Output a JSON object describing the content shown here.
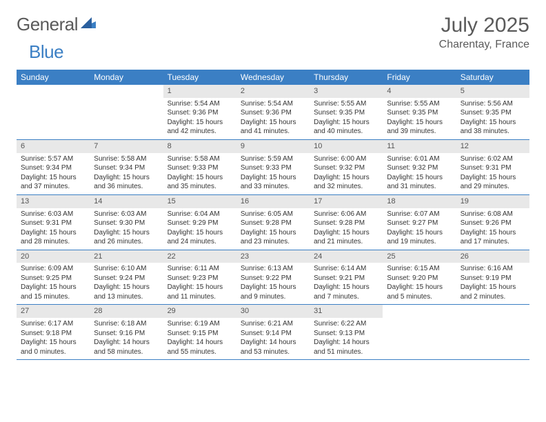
{
  "logo": {
    "text1": "General",
    "text2": "Blue"
  },
  "title": "July 2025",
  "location": "Charentay, France",
  "colors": {
    "header_bg": "#3b7fc4",
    "header_text": "#ffffff",
    "daynum_bg": "#e8e8e8",
    "body_text": "#333333",
    "title_text": "#5a5a5a",
    "divider": "#3b7fc4"
  },
  "daysOfWeek": [
    "Sunday",
    "Monday",
    "Tuesday",
    "Wednesday",
    "Thursday",
    "Friday",
    "Saturday"
  ],
  "weeks": [
    [
      {
        "n": "",
        "sr": "",
        "ss": "",
        "dl": ""
      },
      {
        "n": "",
        "sr": "",
        "ss": "",
        "dl": ""
      },
      {
        "n": "1",
        "sr": "Sunrise: 5:54 AM",
        "ss": "Sunset: 9:36 PM",
        "dl": "Daylight: 15 hours and 42 minutes."
      },
      {
        "n": "2",
        "sr": "Sunrise: 5:54 AM",
        "ss": "Sunset: 9:36 PM",
        "dl": "Daylight: 15 hours and 41 minutes."
      },
      {
        "n": "3",
        "sr": "Sunrise: 5:55 AM",
        "ss": "Sunset: 9:35 PM",
        "dl": "Daylight: 15 hours and 40 minutes."
      },
      {
        "n": "4",
        "sr": "Sunrise: 5:55 AM",
        "ss": "Sunset: 9:35 PM",
        "dl": "Daylight: 15 hours and 39 minutes."
      },
      {
        "n": "5",
        "sr": "Sunrise: 5:56 AM",
        "ss": "Sunset: 9:35 PM",
        "dl": "Daylight: 15 hours and 38 minutes."
      }
    ],
    [
      {
        "n": "6",
        "sr": "Sunrise: 5:57 AM",
        "ss": "Sunset: 9:34 PM",
        "dl": "Daylight: 15 hours and 37 minutes."
      },
      {
        "n": "7",
        "sr": "Sunrise: 5:58 AM",
        "ss": "Sunset: 9:34 PM",
        "dl": "Daylight: 15 hours and 36 minutes."
      },
      {
        "n": "8",
        "sr": "Sunrise: 5:58 AM",
        "ss": "Sunset: 9:33 PM",
        "dl": "Daylight: 15 hours and 35 minutes."
      },
      {
        "n": "9",
        "sr": "Sunrise: 5:59 AM",
        "ss": "Sunset: 9:33 PM",
        "dl": "Daylight: 15 hours and 33 minutes."
      },
      {
        "n": "10",
        "sr": "Sunrise: 6:00 AM",
        "ss": "Sunset: 9:32 PM",
        "dl": "Daylight: 15 hours and 32 minutes."
      },
      {
        "n": "11",
        "sr": "Sunrise: 6:01 AM",
        "ss": "Sunset: 9:32 PM",
        "dl": "Daylight: 15 hours and 31 minutes."
      },
      {
        "n": "12",
        "sr": "Sunrise: 6:02 AM",
        "ss": "Sunset: 9:31 PM",
        "dl": "Daylight: 15 hours and 29 minutes."
      }
    ],
    [
      {
        "n": "13",
        "sr": "Sunrise: 6:03 AM",
        "ss": "Sunset: 9:31 PM",
        "dl": "Daylight: 15 hours and 28 minutes."
      },
      {
        "n": "14",
        "sr": "Sunrise: 6:03 AM",
        "ss": "Sunset: 9:30 PM",
        "dl": "Daylight: 15 hours and 26 minutes."
      },
      {
        "n": "15",
        "sr": "Sunrise: 6:04 AM",
        "ss": "Sunset: 9:29 PM",
        "dl": "Daylight: 15 hours and 24 minutes."
      },
      {
        "n": "16",
        "sr": "Sunrise: 6:05 AM",
        "ss": "Sunset: 9:28 PM",
        "dl": "Daylight: 15 hours and 23 minutes."
      },
      {
        "n": "17",
        "sr": "Sunrise: 6:06 AM",
        "ss": "Sunset: 9:28 PM",
        "dl": "Daylight: 15 hours and 21 minutes."
      },
      {
        "n": "18",
        "sr": "Sunrise: 6:07 AM",
        "ss": "Sunset: 9:27 PM",
        "dl": "Daylight: 15 hours and 19 minutes."
      },
      {
        "n": "19",
        "sr": "Sunrise: 6:08 AM",
        "ss": "Sunset: 9:26 PM",
        "dl": "Daylight: 15 hours and 17 minutes."
      }
    ],
    [
      {
        "n": "20",
        "sr": "Sunrise: 6:09 AM",
        "ss": "Sunset: 9:25 PM",
        "dl": "Daylight: 15 hours and 15 minutes."
      },
      {
        "n": "21",
        "sr": "Sunrise: 6:10 AM",
        "ss": "Sunset: 9:24 PM",
        "dl": "Daylight: 15 hours and 13 minutes."
      },
      {
        "n": "22",
        "sr": "Sunrise: 6:11 AM",
        "ss": "Sunset: 9:23 PM",
        "dl": "Daylight: 15 hours and 11 minutes."
      },
      {
        "n": "23",
        "sr": "Sunrise: 6:13 AM",
        "ss": "Sunset: 9:22 PM",
        "dl": "Daylight: 15 hours and 9 minutes."
      },
      {
        "n": "24",
        "sr": "Sunrise: 6:14 AM",
        "ss": "Sunset: 9:21 PM",
        "dl": "Daylight: 15 hours and 7 minutes."
      },
      {
        "n": "25",
        "sr": "Sunrise: 6:15 AM",
        "ss": "Sunset: 9:20 PM",
        "dl": "Daylight: 15 hours and 5 minutes."
      },
      {
        "n": "26",
        "sr": "Sunrise: 6:16 AM",
        "ss": "Sunset: 9:19 PM",
        "dl": "Daylight: 15 hours and 2 minutes."
      }
    ],
    [
      {
        "n": "27",
        "sr": "Sunrise: 6:17 AM",
        "ss": "Sunset: 9:18 PM",
        "dl": "Daylight: 15 hours and 0 minutes."
      },
      {
        "n": "28",
        "sr": "Sunrise: 6:18 AM",
        "ss": "Sunset: 9:16 PM",
        "dl": "Daylight: 14 hours and 58 minutes."
      },
      {
        "n": "29",
        "sr": "Sunrise: 6:19 AM",
        "ss": "Sunset: 9:15 PM",
        "dl": "Daylight: 14 hours and 55 minutes."
      },
      {
        "n": "30",
        "sr": "Sunrise: 6:21 AM",
        "ss": "Sunset: 9:14 PM",
        "dl": "Daylight: 14 hours and 53 minutes."
      },
      {
        "n": "31",
        "sr": "Sunrise: 6:22 AM",
        "ss": "Sunset: 9:13 PM",
        "dl": "Daylight: 14 hours and 51 minutes."
      },
      {
        "n": "",
        "sr": "",
        "ss": "",
        "dl": ""
      },
      {
        "n": "",
        "sr": "",
        "ss": "",
        "dl": ""
      }
    ]
  ]
}
